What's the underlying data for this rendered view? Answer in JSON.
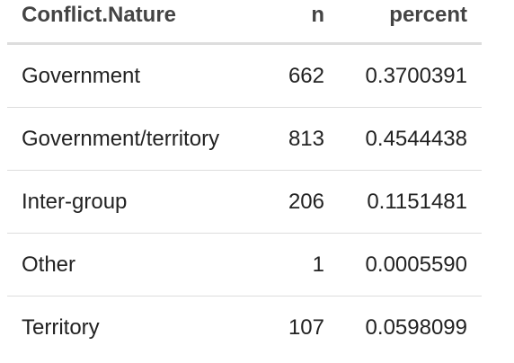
{
  "table": {
    "header": [
      "Conflict.Nature",
      "n",
      "percent"
    ],
    "rows": [
      [
        "Government",
        "662",
        "0.3700391"
      ],
      [
        "Government/territory",
        "813",
        "0.4544438"
      ],
      [
        "Inter-group",
        "206",
        "0.1151481"
      ],
      [
        "Other",
        "1",
        "0.0005590"
      ],
      [
        "Territory",
        "107",
        "0.0598099"
      ]
    ]
  }
}
